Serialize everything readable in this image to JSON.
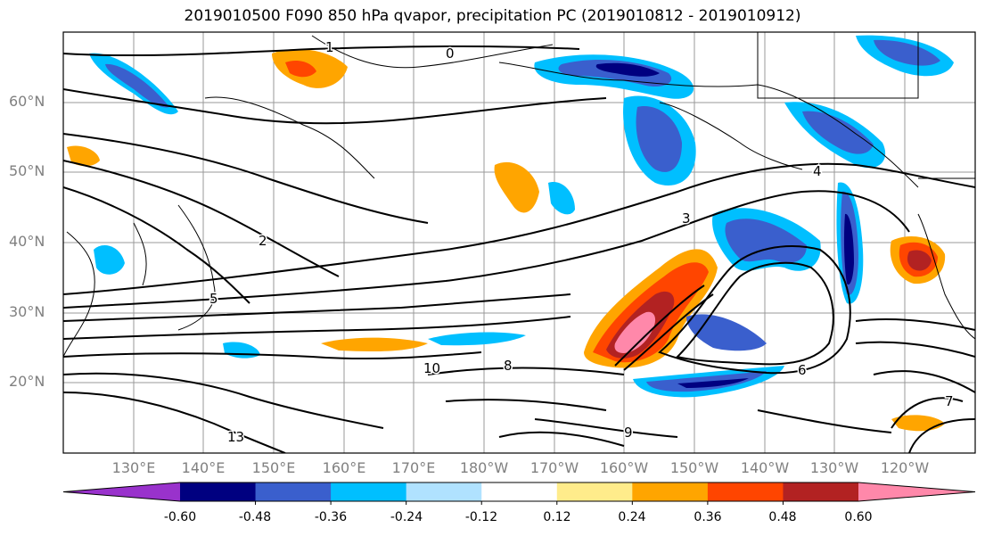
{
  "title": "2019010500 F090 850 hPa qvapor, precipitation PC (2019010812 - 2019010912)",
  "lat_labels": [
    "60°N",
    "50°N",
    "40°N",
    "30°N",
    "20°N"
  ],
  "lon_labels": [
    "130°E",
    "140°E",
    "150°E",
    "160°E",
    "170°E",
    "180°W",
    "170°W",
    "160°W",
    "150°W",
    "140°W",
    "130°W",
    "120°W"
  ],
  "colorbar": {
    "ticks": [
      "-0.60",
      "-0.48",
      "-0.36",
      "-0.24",
      "-0.12",
      "0.12",
      "0.24",
      "0.36",
      "0.48",
      "0.60"
    ],
    "colors": [
      "#9932cc",
      "#000080",
      "#3a5fcd",
      "#00bfff",
      "#b0e2ff",
      "#ffffff",
      "#ffec8b",
      "#ffa500",
      "#ff4500",
      "#b22222",
      "#ff88aa"
    ]
  },
  "contour_labels": [
    "0",
    "1",
    "2",
    "3",
    "4",
    "5",
    "6",
    "7",
    "8",
    "9",
    "10",
    "13"
  ]
}
